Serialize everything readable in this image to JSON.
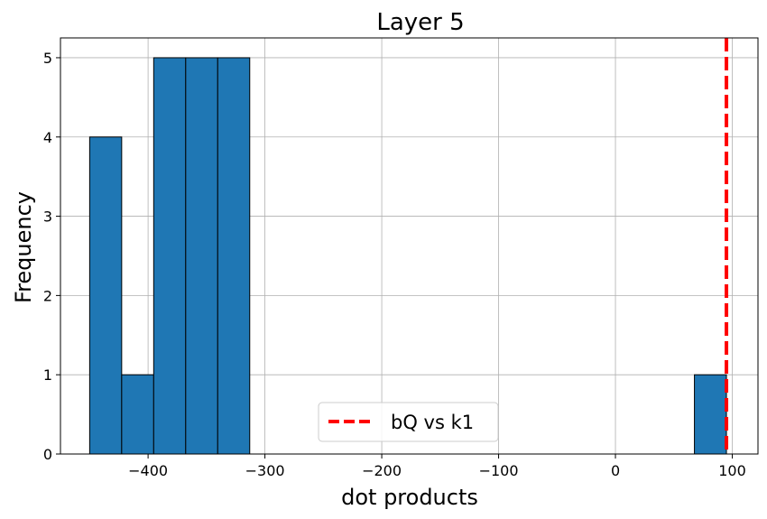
{
  "chart_data": {
    "type": "bar",
    "title": "Layer 5",
    "xlabel": "dot products",
    "ylabel": "Frequency",
    "xlim": [
      -475,
      122
    ],
    "ylim": [
      0,
      5.25
    ],
    "xticks": [
      -400,
      -300,
      -200,
      -100,
      0,
      100
    ],
    "yticks": [
      0,
      1,
      2,
      3,
      4,
      5
    ],
    "grid": true,
    "bar_color": "#1f77b4",
    "edge_color": "#000000",
    "bins": [
      {
        "x0": -450.0,
        "x1": -422.6,
        "count": 4
      },
      {
        "x0": -422.6,
        "x1": -395.2,
        "count": 1
      },
      {
        "x0": -395.2,
        "x1": -367.8,
        "count": 5
      },
      {
        "x0": -367.8,
        "x1": -340.4,
        "count": 5
      },
      {
        "x0": -340.4,
        "x1": -313.0,
        "count": 5
      },
      {
        "x0": 67.6,
        "x1": 95.0,
        "count": 1
      }
    ],
    "reference_lines": [
      {
        "name": "bQ vs k1",
        "x": 95.0,
        "color": "#ff0000",
        "style": "dashed"
      }
    ],
    "legend": {
      "position": "bottom-center",
      "entries": [
        "bQ vs k1"
      ]
    }
  }
}
